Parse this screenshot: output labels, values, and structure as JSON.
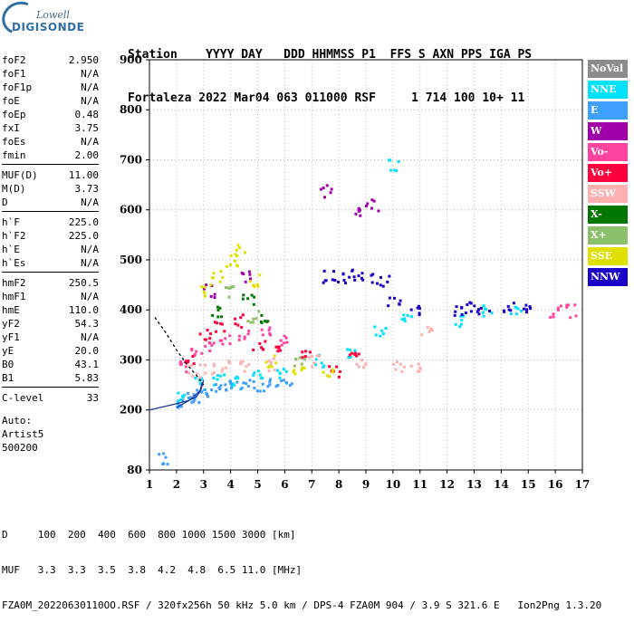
{
  "logo": {
    "line1": "Lowell",
    "line2": "DIGISONDE"
  },
  "header": {
    "line1": "Station    YYYY DAY   DDD HHMMSS P1  FFS S AXN PPS IGA PS",
    "line2": "Fortaleza 2022 Mar04 063 011000 RSF     1 714 100 10+ 11"
  },
  "params": [
    {
      "group": [
        {
          "name": "foF2",
          "value": "2.950"
        },
        {
          "name": "foF1",
          "value": "N/A"
        },
        {
          "name": "foF1p",
          "value": "N/A"
        },
        {
          "name": "foE",
          "value": "N/A"
        },
        {
          "name": "foEp",
          "value": "0.48"
        },
        {
          "name": "fxI",
          "value": "3.75"
        },
        {
          "name": "foEs",
          "value": "N/A"
        },
        {
          "name": "fmin",
          "value": "2.00"
        }
      ]
    },
    {
      "group": [
        {
          "name": "MUF(D)",
          "value": "11.00"
        },
        {
          "name": "M(D)",
          "value": "3.73"
        },
        {
          "name": "D",
          "value": "N/A"
        }
      ]
    },
    {
      "group": [
        {
          "name": "h`F",
          "value": "225.0"
        },
        {
          "name": "h`F2",
          "value": "225.0"
        },
        {
          "name": "h`E",
          "value": "N/A"
        },
        {
          "name": "h`Es",
          "value": "N/A"
        }
      ]
    },
    {
      "group": [
        {
          "name": "hmF2",
          "value": "250.5"
        },
        {
          "name": "hmF1",
          "value": "N/A"
        },
        {
          "name": "hmE",
          "value": "110.0"
        },
        {
          "name": "yF2",
          "value": "54.3"
        },
        {
          "name": "yF1",
          "value": "N/A"
        },
        {
          "name": "yE",
          "value": "20.0"
        },
        {
          "name": "B0",
          "value": "43.1"
        },
        {
          "name": "B1",
          "value": "5.83"
        }
      ]
    },
    {
      "group": [
        {
          "name": "C-level",
          "value": "33"
        }
      ]
    }
  ],
  "autoscaling": {
    "line1": "Auto:",
    "line2": "Artist5",
    "line3": "500200"
  },
  "legend": [
    {
      "label": "NoVal",
      "color": "#8c8c8c"
    },
    {
      "label": "NNE",
      "color": "#00e0ff"
    },
    {
      "label": "E",
      "color": "#3f9fff"
    },
    {
      "label": "W",
      "color": "#a000a8"
    },
    {
      "label": "Vo-",
      "color": "#ff44a0"
    },
    {
      "label": "Vo+",
      "color": "#ff003c"
    },
    {
      "label": "SSW",
      "color": "#ffb0b0"
    },
    {
      "label": "X-",
      "color": "#007800"
    },
    {
      "label": "X+",
      "color": "#8cbf6a"
    },
    {
      "label": "SSE",
      "color": "#e0e000"
    },
    {
      "label": "NNW",
      "color": "#1a00c8"
    }
  ],
  "footer": {
    "line1": "D     100  200  400  600  800 1000 1500 3000 [km]",
    "line2": "MUF   3.3  3.3  3.5  3.8  4.2  4.8  6.5 11.0 [MHz]",
    "line3": "FZA0M_20220630110OO.RSF / 320fx256h 50 kHz 5.0 km / DPS-4 FZA0M 904 / 3.9 S 321.6 E   Ion2Png 1.3.20"
  },
  "chart_data": {
    "type": "scatter",
    "title": "",
    "xlabel": "",
    "ylabel": "",
    "xlim": [
      1,
      17
    ],
    "ylim": [
      80,
      900
    ],
    "x_ticks": [
      1,
      2,
      3,
      4,
      5,
      6,
      7,
      8,
      9,
      10,
      11,
      12,
      13,
      14,
      15,
      16,
      17
    ],
    "y_ticks": [
      80,
      200,
      300,
      400,
      500,
      600,
      700,
      800,
      900
    ],
    "grid": true,
    "legend_position": "right",
    "series": [
      {
        "name": "NNE",
        "color": "#00e0ff",
        "points": [
          [
            2.2,
            230
          ],
          [
            2.8,
            255
          ],
          [
            3.5,
            265
          ],
          [
            4.2,
            262
          ],
          [
            5.0,
            270
          ],
          [
            5.8,
            275
          ],
          [
            7.2,
            300
          ],
          [
            8.5,
            320
          ],
          [
            9.5,
            360
          ],
          [
            10.0,
            690
          ],
          [
            10.5,
            380
          ],
          [
            12.5,
            380
          ],
          [
            13.5,
            400
          ],
          [
            14.5,
            405
          ]
        ]
      },
      {
        "name": "E",
        "color": "#3f9fff",
        "points": [
          [
            2.0,
            220
          ],
          [
            2.4,
            225
          ],
          [
            2.8,
            230
          ],
          [
            3.2,
            240
          ],
          [
            3.6,
            245
          ],
          [
            4.0,
            248
          ],
          [
            4.5,
            250
          ],
          [
            5.0,
            252
          ],
          [
            5.5,
            255
          ],
          [
            6.0,
            258
          ],
          [
            1.5,
            105
          ]
        ]
      },
      {
        "name": "W",
        "color": "#a000a8",
        "points": [
          [
            7.5,
            640
          ],
          [
            8.7,
            595
          ],
          [
            9.2,
            610
          ],
          [
            3.2,
            440
          ],
          [
            4.6,
            470
          ]
        ]
      },
      {
        "name": "Vo-",
        "color": "#ff44a0",
        "points": [
          [
            2.3,
            290
          ],
          [
            2.7,
            320
          ],
          [
            3.2,
            330
          ],
          [
            3.8,
            340
          ],
          [
            4.5,
            350
          ],
          [
            5.2,
            360
          ],
          [
            6.0,
            340
          ],
          [
            16.0,
            400
          ],
          [
            16.6,
            400
          ]
        ]
      },
      {
        "name": "Vo+",
        "color": "#ff003c",
        "points": [
          [
            2.5,
            300
          ],
          [
            3.0,
            350
          ],
          [
            3.5,
            370
          ],
          [
            4.2,
            380
          ],
          [
            5.0,
            330
          ],
          [
            5.8,
            320
          ],
          [
            6.8,
            310
          ],
          [
            7.8,
            280
          ],
          [
            8.5,
            320
          ]
        ]
      },
      {
        "name": "SSW",
        "color": "#ffb0b0",
        "points": [
          [
            2.6,
            280
          ],
          [
            3.2,
            285
          ],
          [
            3.8,
            288
          ],
          [
            4.5,
            290
          ],
          [
            5.5,
            292
          ],
          [
            7.0,
            300
          ],
          [
            8.8,
            300
          ],
          [
            10.2,
            290
          ],
          [
            10.8,
            285
          ],
          [
            11.2,
            360
          ]
        ]
      },
      {
        "name": "X-",
        "color": "#007800",
        "points": [
          [
            3.5,
            400
          ],
          [
            4.6,
            420
          ],
          [
            5.2,
            380
          ]
        ]
      },
      {
        "name": "X+",
        "color": "#8cbf6a",
        "points": [
          [
            4.0,
            440
          ],
          [
            4.8,
            390
          ],
          [
            6.5,
            300
          ]
        ]
      },
      {
        "name": "SSE",
        "color": "#e0e000",
        "points": [
          [
            3.0,
            440
          ],
          [
            3.5,
            470
          ],
          [
            4.0,
            500
          ],
          [
            4.3,
            520
          ],
          [
            4.8,
            460
          ],
          [
            5.5,
            300
          ],
          [
            6.5,
            275
          ],
          [
            7.5,
            280
          ]
        ]
      },
      {
        "name": "NNW",
        "color": "#1a00c8",
        "points": [
          [
            7.6,
            468
          ],
          [
            8.0,
            468
          ],
          [
            8.5,
            470
          ],
          [
            9.0,
            465
          ],
          [
            9.6,
            460
          ],
          [
            10.0,
            420
          ],
          [
            10.8,
            400
          ],
          [
            12.3,
            400
          ],
          [
            12.8,
            405
          ],
          [
            13.3,
            395
          ],
          [
            14.2,
            410
          ],
          [
            14.8,
            405
          ]
        ]
      }
    ],
    "traces": [
      {
        "name": "ordinary",
        "color": "#1a3aa0",
        "style": "solid",
        "points": [
          [
            1.0,
            200
          ],
          [
            1.8,
            210
          ],
          [
            2.4,
            218
          ],
          [
            2.7,
            225
          ],
          [
            2.85,
            235
          ],
          [
            2.95,
            255
          ]
        ]
      },
      {
        "name": "ordinary-upper",
        "color": "#1a3aa0",
        "style": "solid",
        "points": [
          [
            2.0,
            205
          ],
          [
            2.5,
            220
          ],
          [
            2.9,
            240
          ],
          [
            3.0,
            260
          ]
        ]
      },
      {
        "name": "profile",
        "color": "#000000",
        "style": "dashed",
        "points": [
          [
            1.2,
            385
          ],
          [
            1.6,
            355
          ],
          [
            2.0,
            320
          ],
          [
            2.4,
            290
          ],
          [
            2.8,
            265
          ],
          [
            3.0,
            250
          ]
        ]
      }
    ]
  }
}
